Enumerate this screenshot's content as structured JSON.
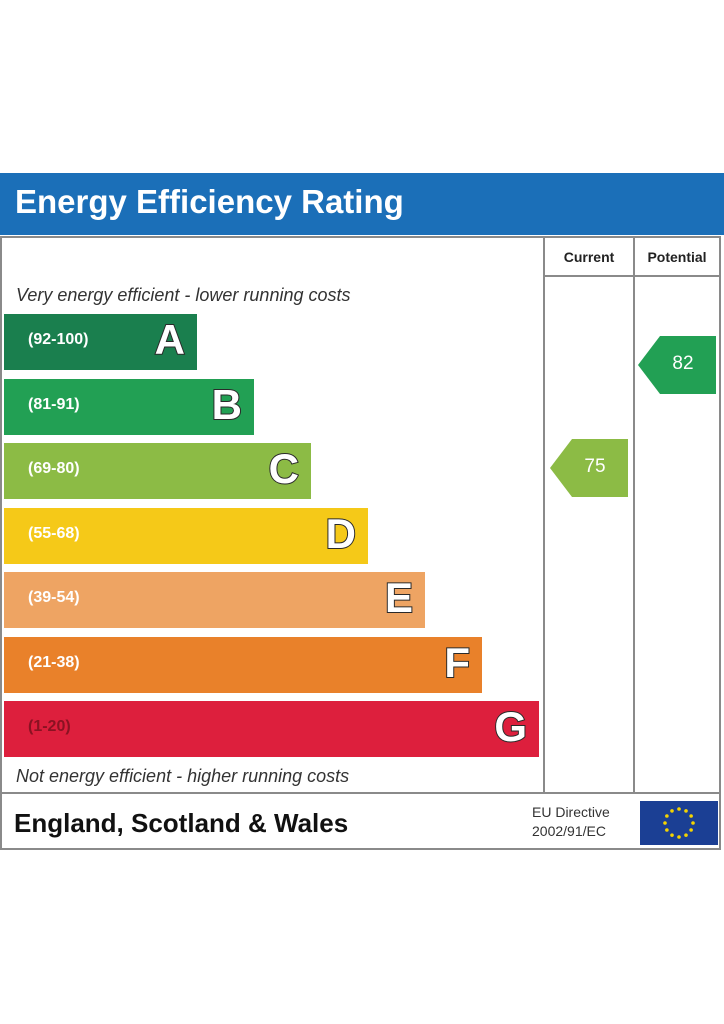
{
  "title": "Energy Efficiency Rating",
  "columns": {
    "current": "Current",
    "potential": "Potential"
  },
  "notes": {
    "top": "Very energy efficient - lower running costs",
    "bottom": "Not energy efficient - higher running costs"
  },
  "chart_data": {
    "type": "bar",
    "title": "Energy Efficiency Rating",
    "categories": [
      "A",
      "B",
      "C",
      "D",
      "E",
      "F",
      "G"
    ],
    "ranges": [
      "(92-100)",
      "(81-91)",
      "(69-80)",
      "(55-68)",
      "(39-54)",
      "(21-38)",
      "(1-20)"
    ],
    "colors": [
      "#1a7f4e",
      "#22a054",
      "#8cbb45",
      "#f5c918",
      "#eea463",
      "#e9812a",
      "#dd1f3d"
    ],
    "current": {
      "value": 75,
      "band": "C",
      "color": "#8cbb45"
    },
    "potential": {
      "value": 82,
      "band": "B",
      "color": "#22a054"
    }
  },
  "footer": {
    "region": "England, Scotland & Wales",
    "directive_line1": "EU Directive",
    "directive_line2": "2002/91/EC"
  },
  "accent": "#1b6fb8"
}
